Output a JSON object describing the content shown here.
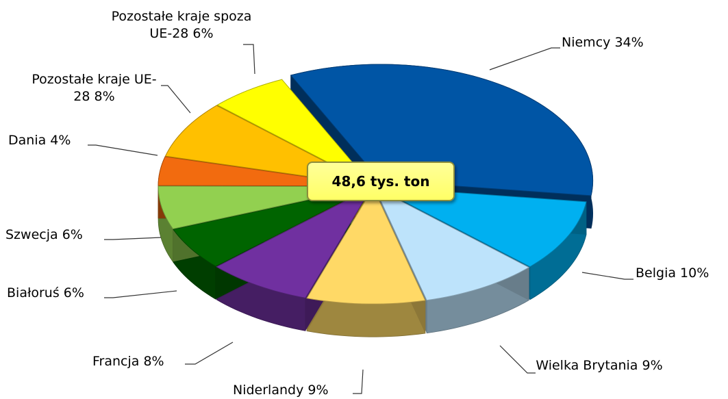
{
  "chart_data": {
    "type": "pie",
    "categories": [
      "Niemcy",
      "Belgia",
      "Wielka Brytania",
      "Niderlandy",
      "Francja",
      "Białoruś",
      "Szwecja",
      "Dania",
      "Pozostałe kraje UE-28",
      "Pozostałe kraje spoza UE-28"
    ],
    "values": [
      34,
      10,
      9,
      9,
      8,
      6,
      6,
      4,
      8,
      6
    ],
    "value_labels": [
      "34%",
      "10%",
      "9%",
      "9%",
      "8%",
      "6%",
      "6%",
      "4%",
      "8%",
      "6%"
    ],
    "colors": [
      "#0055a5",
      "#00b0f0",
      "#bde3fb",
      "#ffd966",
      "#7030a0",
      "#006400",
      "#92d050",
      "#f26b0f",
      "#ffc000",
      "#ffff00"
    ],
    "center_label": "48,6 tys. ton"
  }
}
